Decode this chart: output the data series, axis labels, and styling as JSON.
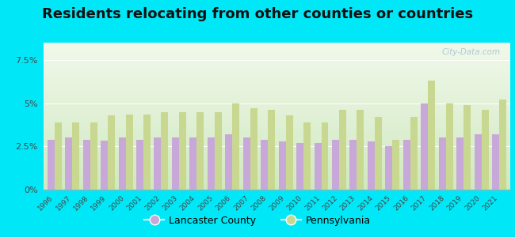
{
  "title": "Residents relocating from other counties or countries",
  "years": [
    1996,
    1997,
    1998,
    1999,
    2000,
    2001,
    2002,
    2003,
    2004,
    2005,
    2006,
    2007,
    2008,
    2009,
    2010,
    2011,
    2012,
    2013,
    2014,
    2015,
    2016,
    2017,
    2018,
    2019,
    2020,
    2021
  ],
  "lancaster": [
    2.9,
    3.0,
    2.9,
    2.85,
    3.0,
    2.9,
    3.0,
    3.0,
    3.0,
    3.0,
    3.2,
    3.0,
    2.9,
    2.8,
    2.7,
    2.7,
    2.9,
    2.9,
    2.8,
    2.5,
    2.9,
    5.0,
    3.0,
    3.0,
    3.2,
    3.2
  ],
  "pennsylvania": [
    3.9,
    3.9,
    3.9,
    4.3,
    4.35,
    4.35,
    4.5,
    4.5,
    4.5,
    4.5,
    5.0,
    4.7,
    4.6,
    4.3,
    3.9,
    3.9,
    4.6,
    4.6,
    4.2,
    2.9,
    4.2,
    6.3,
    5.0,
    4.9,
    4.6,
    5.2
  ],
  "lancaster_color": "#c8a8d8",
  "pennsylvania_color": "#c8d890",
  "bg_outer": "#00e8f8",
  "bg_plot_top": "#f0f8ea",
  "bg_plot_bottom": "#d0e8c0",
  "title_fontsize": 13,
  "yticks": [
    0,
    2.5,
    5.0,
    7.5
  ],
  "ylim": [
    0,
    8.5
  ],
  "ylabel_fmt": [
    "0%",
    "2.5%",
    "5%",
    "7.5%"
  ],
  "watermark": "City-Data.com",
  "legend_lancaster": "Lancaster County",
  "legend_pennsylvania": "Pennsylvania"
}
